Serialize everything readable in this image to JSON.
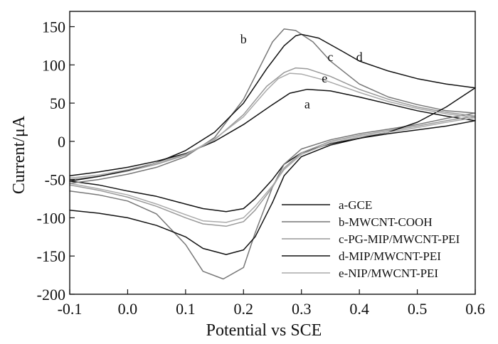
{
  "chart_data": {
    "type": "line",
    "xlabel": "Potential vs SCE",
    "ylabel": "Current/μA",
    "xlim": [
      -0.1,
      0.6
    ],
    "ylim": [
      -200,
      170
    ],
    "xticks": [
      -0.1,
      0.0,
      0.1,
      0.2,
      0.3,
      0.4,
      0.5,
      0.6
    ],
    "xtick_labels": [
      "-0.1",
      "0.0",
      "0.1",
      "0.2",
      "0.3",
      "0.4",
      "0.5",
      "0.6"
    ],
    "yticks": [
      -200,
      -150,
      -100,
      -50,
      0,
      50,
      100,
      150
    ],
    "ytick_labels": [
      "-200",
      "-150",
      "-100",
      "-50",
      "0",
      "50",
      "100",
      "150"
    ],
    "grid": false,
    "legend_position": "lower-right",
    "series": [
      {
        "name": "a-GCE",
        "label": "a",
        "label_at": [
          0.31,
          43
        ],
        "color": "#111111",
        "points": [
          [
            -0.1,
            -45
          ],
          [
            -0.05,
            -40
          ],
          [
            0.0,
            -34
          ],
          [
            0.05,
            -26
          ],
          [
            0.1,
            -16
          ],
          [
            0.15,
            0
          ],
          [
            0.2,
            22
          ],
          [
            0.25,
            48
          ],
          [
            0.28,
            63
          ],
          [
            0.31,
            68
          ],
          [
            0.35,
            66
          ],
          [
            0.4,
            58
          ],
          [
            0.45,
            49
          ],
          [
            0.5,
            40
          ],
          [
            0.55,
            33
          ],
          [
            0.6,
            27
          ],
          [
            0.55,
            20
          ],
          [
            0.5,
            15
          ],
          [
            0.45,
            10
          ],
          [
            0.4,
            4
          ],
          [
            0.35,
            -3
          ],
          [
            0.3,
            -15
          ],
          [
            0.27,
            -30
          ],
          [
            0.25,
            -50
          ],
          [
            0.22,
            -75
          ],
          [
            0.2,
            -88
          ],
          [
            0.17,
            -92
          ],
          [
            0.13,
            -88
          ],
          [
            0.1,
            -82
          ],
          [
            0.05,
            -72
          ],
          [
            0.0,
            -65
          ],
          [
            -0.05,
            -57
          ],
          [
            -0.1,
            -52
          ]
        ]
      },
      {
        "name": "b-MWCNT-COOH",
        "label": "b",
        "label_at": [
          0.2,
          128
        ],
        "color": "#777777",
        "points": [
          [
            -0.1,
            -55
          ],
          [
            -0.05,
            -50
          ],
          [
            0.0,
            -43
          ],
          [
            0.05,
            -34
          ],
          [
            0.1,
            -20
          ],
          [
            0.15,
            5
          ],
          [
            0.2,
            55
          ],
          [
            0.23,
            100
          ],
          [
            0.25,
            130
          ],
          [
            0.27,
            147
          ],
          [
            0.29,
            145
          ],
          [
            0.32,
            130
          ],
          [
            0.35,
            105
          ],
          [
            0.4,
            75
          ],
          [
            0.45,
            58
          ],
          [
            0.5,
            48
          ],
          [
            0.55,
            40
          ],
          [
            0.6,
            37
          ],
          [
            0.55,
            30
          ],
          [
            0.5,
            22
          ],
          [
            0.45,
            16
          ],
          [
            0.4,
            10
          ],
          [
            0.35,
            2
          ],
          [
            0.3,
            -10
          ],
          [
            0.27,
            -30
          ],
          [
            0.25,
            -60
          ],
          [
            0.22,
            -120
          ],
          [
            0.2,
            -165
          ],
          [
            0.165,
            -180
          ],
          [
            0.13,
            -170
          ],
          [
            0.1,
            -135
          ],
          [
            0.05,
            -95
          ],
          [
            0.0,
            -78
          ],
          [
            -0.05,
            -70
          ],
          [
            -0.1,
            -65
          ]
        ]
      },
      {
        "name": "c-PG-MIP/MWCNT-PEI",
        "label": "c",
        "label_at": [
          0.35,
          105
        ],
        "color": "#999999",
        "points": [
          [
            -0.1,
            -50
          ],
          [
            -0.05,
            -46
          ],
          [
            0.0,
            -39
          ],
          [
            0.05,
            -30
          ],
          [
            0.1,
            -18
          ],
          [
            0.15,
            2
          ],
          [
            0.2,
            35
          ],
          [
            0.24,
            72
          ],
          [
            0.27,
            90
          ],
          [
            0.29,
            96
          ],
          [
            0.31,
            95
          ],
          [
            0.35,
            85
          ],
          [
            0.4,
            68
          ],
          [
            0.45,
            55
          ],
          [
            0.5,
            45
          ],
          [
            0.55,
            38
          ],
          [
            0.6,
            33
          ],
          [
            0.55,
            27
          ],
          [
            0.5,
            20
          ],
          [
            0.45,
            14
          ],
          [
            0.4,
            8
          ],
          [
            0.35,
            0
          ],
          [
            0.3,
            -15
          ],
          [
            0.27,
            -35
          ],
          [
            0.25,
            -60
          ],
          [
            0.22,
            -90
          ],
          [
            0.2,
            -105
          ],
          [
            0.17,
            -111
          ],
          [
            0.13,
            -108
          ],
          [
            0.1,
            -100
          ],
          [
            0.05,
            -85
          ],
          [
            0.0,
            -73
          ],
          [
            -0.05,
            -64
          ],
          [
            -0.1,
            -57
          ]
        ]
      },
      {
        "name": "d-MIP/MWCNT-PEI",
        "label": "d",
        "label_at": [
          0.4,
          105
        ],
        "color": "#111111",
        "points": [
          [
            -0.1,
            -52
          ],
          [
            -0.05,
            -46
          ],
          [
            0.0,
            -38
          ],
          [
            0.05,
            -28
          ],
          [
            0.1,
            -12
          ],
          [
            0.15,
            12
          ],
          [
            0.2,
            50
          ],
          [
            0.24,
            95
          ],
          [
            0.27,
            125
          ],
          [
            0.29,
            138
          ],
          [
            0.3,
            140
          ],
          [
            0.33,
            135
          ],
          [
            0.37,
            118
          ],
          [
            0.4,
            105
          ],
          [
            0.45,
            92
          ],
          [
            0.5,
            82
          ],
          [
            0.55,
            75
          ],
          [
            0.6,
            70
          ],
          [
            0.55,
            45
          ],
          [
            0.5,
            25
          ],
          [
            0.45,
            12
          ],
          [
            0.4,
            4
          ],
          [
            0.35,
            -5
          ],
          [
            0.3,
            -20
          ],
          [
            0.27,
            -45
          ],
          [
            0.25,
            -80
          ],
          [
            0.22,
            -125
          ],
          [
            0.2,
            -142
          ],
          [
            0.17,
            -148
          ],
          [
            0.13,
            -140
          ],
          [
            0.1,
            -125
          ],
          [
            0.05,
            -110
          ],
          [
            0.0,
            -100
          ],
          [
            -0.05,
            -94
          ],
          [
            -0.1,
            -90
          ]
        ]
      },
      {
        "name": "e-NIP/MWCNT-PEI",
        "label": "e",
        "label_at": [
          0.34,
          77
        ],
        "color": "#aaaaaa",
        "points": [
          [
            -0.1,
            -48
          ],
          [
            -0.05,
            -44
          ],
          [
            0.0,
            -37
          ],
          [
            0.05,
            -28
          ],
          [
            0.1,
            -17
          ],
          [
            0.15,
            3
          ],
          [
            0.2,
            32
          ],
          [
            0.24,
            67
          ],
          [
            0.26,
            82
          ],
          [
            0.28,
            89
          ],
          [
            0.3,
            88
          ],
          [
            0.34,
            80
          ],
          [
            0.4,
            64
          ],
          [
            0.45,
            52
          ],
          [
            0.5,
            43
          ],
          [
            0.55,
            36
          ],
          [
            0.6,
            31
          ],
          [
            0.55,
            25
          ],
          [
            0.5,
            18
          ],
          [
            0.45,
            12
          ],
          [
            0.4,
            6
          ],
          [
            0.35,
            -2
          ],
          [
            0.3,
            -17
          ],
          [
            0.27,
            -37
          ],
          [
            0.25,
            -58
          ],
          [
            0.22,
            -85
          ],
          [
            0.2,
            -100
          ],
          [
            0.17,
            -106
          ],
          [
            0.13,
            -104
          ],
          [
            0.1,
            -96
          ],
          [
            0.05,
            -82
          ],
          [
            0.0,
            -70
          ],
          [
            -0.05,
            -62
          ],
          [
            -0.1,
            -55
          ]
        ]
      }
    ]
  }
}
